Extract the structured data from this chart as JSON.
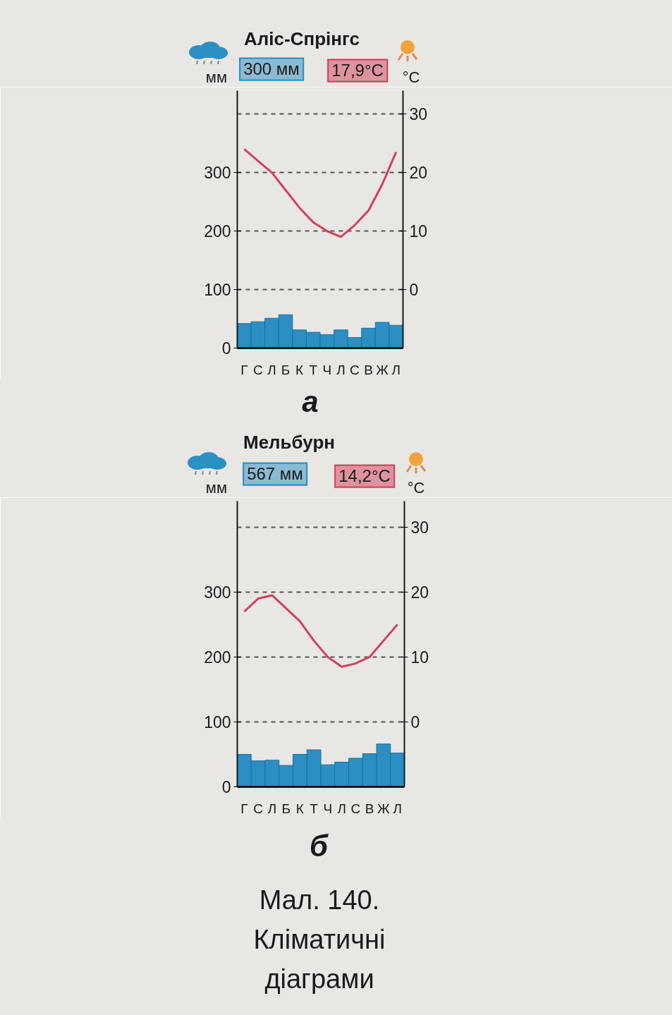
{
  "chart_data": [
    {
      "type": "bar",
      "title": "Аліс-Спрінгс",
      "categories": [
        "Г",
        "С",
        "Л",
        "Б",
        "К",
        "Т",
        "Ч",
        "Л",
        "С",
        "В",
        "Ж",
        "Л"
      ],
      "series": [
        {
          "color": "#2b8fc4",
          "values": [
            42,
            45,
            51,
            57,
            31,
            27,
            23,
            31,
            18,
            34,
            44,
            39
          ]
        },
        {
          "type": "line",
          "axis": "y2",
          "color": "#d2405c",
          "values": [
            24,
            22,
            20,
            17,
            14,
            11.5,
            10,
            9,
            11,
            13.5,
            18,
            23.5
          ]
        }
      ],
      "ylabel": "мм",
      "y2label": "°C",
      "ylim": [
        0,
        440
      ],
      "yticks": [
        0,
        100,
        200,
        300
      ],
      "y2lim": [
        -10,
        34
      ],
      "y2ticks": [
        0,
        10,
        20,
        30
      ],
      "grid": "y2",
      "annotations": [
        "300 мм",
        "17,9°C",
        "а"
      ]
    },
    {
      "type": "bar",
      "title": "Мельбурн",
      "categories": [
        "Г",
        "С",
        "Л",
        "Б",
        "К",
        "Т",
        "Ч",
        "Л",
        "С",
        "В",
        "Ж",
        "Л"
      ],
      "series": [
        {
          "color": "#2b8fc4",
          "values": [
            50,
            40,
            41,
            33,
            50,
            57,
            34,
            38,
            44,
            51,
            66,
            52
          ]
        },
        {
          "type": "line",
          "axis": "y2",
          "color": "#d2405c",
          "values": [
            17,
            19,
            19.5,
            17.5,
            15.5,
            12.5,
            10,
            8.5,
            9,
            10,
            12.5,
            15
          ]
        }
      ],
      "ylabel": "мм",
      "y2label": "°C",
      "ylim": [
        0,
        440
      ],
      "yticks": [
        0,
        100,
        200,
        300
      ],
      "y2lim": [
        -10,
        34
      ],
      "y2ticks": [
        0,
        10,
        20,
        30
      ],
      "grid": "y2",
      "annotations": [
        "567 мм",
        "14,2°C",
        "б",
        "Мал. 140.\nКліматичні\nдіаграми"
      ]
    }
  ]
}
